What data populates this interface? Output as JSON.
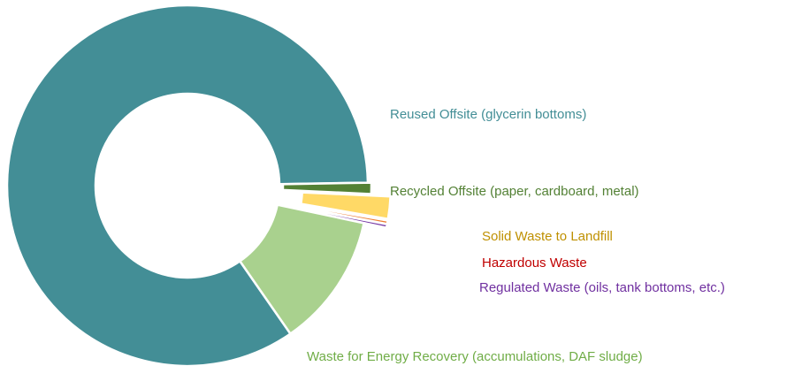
{
  "chart_data": {
    "type": "donut",
    "categories": [
      "Reused Offsite (glycerin bottoms)",
      "Recycled Offsite (paper, cardboard, metal)",
      "Solid Waste to Landfill",
      "Hazardous Waste",
      "Regulated Waste (oils, tank bottoms, etc.)",
      "Waste for Energy Recovery (accumulations, DAF sludge)"
    ],
    "values": [
      84.4,
      1,
      2,
      0.3,
      0.3,
      12
    ],
    "colors": [
      "#438e96",
      "#538135",
      "#ffd966",
      "#ed7d31",
      "#7030a0",
      "#a9d18e"
    ],
    "label_colors": [
      "#438e96",
      "#538135",
      "#bf9000",
      "#c00000",
      "#7030a0",
      "#70ad47"
    ]
  }
}
